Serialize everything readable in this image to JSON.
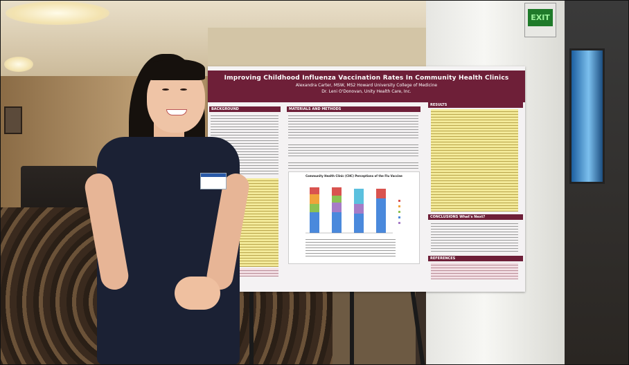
{
  "photo": {
    "exit_sign": "EXIT",
    "poster": {
      "title": "Improving Childhood Influenza Vaccination Rates In Community Health Clinics",
      "authors_line1": "Alexandra Carter, MSW, MS2 Howard University College of Medicine",
      "authors_line2": "Dr. Leni O'Donovan, Unity Health Care, Inc.",
      "sections": {
        "background": "BACKGROUND",
        "methods": "MATERIALS AND METHODS",
        "results": "RESULTS",
        "conclusions": "CONCLUSIONS   What's Next?",
        "references": "REFERENCES"
      },
      "chart_title": "Community Health Clinic (CHC) Perceptions of the Flu Vaccine"
    },
    "colors": {
      "poster_header": "#6e1f38",
      "dress": "#1b2134",
      "results_yellow": "#f3ea9a"
    }
  }
}
